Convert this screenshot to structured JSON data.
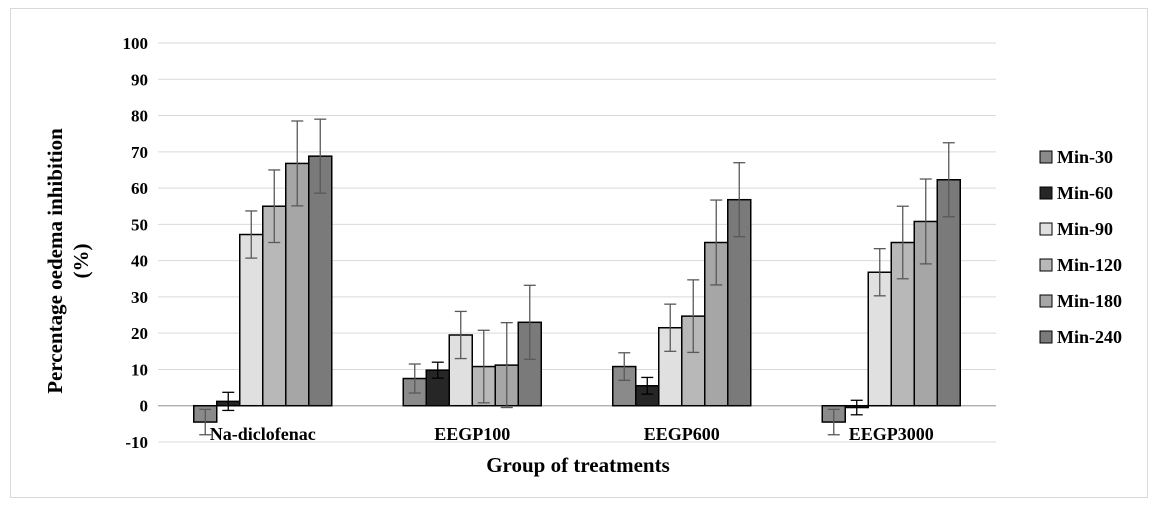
{
  "chart_data": {
    "type": "bar",
    "title": "",
    "xlabel": "Group of treatments",
    "ylabel_line1": "Percentage oedema inhibition",
    "ylabel_line2": "(%)",
    "ylim": [
      -10,
      100
    ],
    "yticks": [
      "-10",
      "0",
      "10",
      "20",
      "30",
      "40",
      "50",
      "60",
      "70",
      "80",
      "90",
      "100"
    ],
    "grid": true,
    "legend_position": "right",
    "categories": [
      "Na-diclofenac",
      "EEGP100",
      "EEGP600",
      "EEGP3000"
    ],
    "series": [
      {
        "name": "Min-30",
        "color": "#8a8a8a",
        "values": [
          -4.5,
          7.5,
          10.8,
          -4.5
        ],
        "errors": [
          3.5,
          4.0,
          3.8,
          3.5
        ]
      },
      {
        "name": "Min-60",
        "color": "#262626",
        "values": [
          1.2,
          9.8,
          5.5,
          -0.5
        ],
        "errors": [
          2.5,
          2.2,
          2.3,
          2.0
        ]
      },
      {
        "name": "Min-90",
        "color": "#e0e0e0",
        "values": [
          47.2,
          19.5,
          21.5,
          36.8
        ],
        "errors": [
          6.5,
          6.5,
          6.5,
          6.5
        ]
      },
      {
        "name": "Min-120",
        "color": "#b8b8b8",
        "values": [
          55.0,
          10.8,
          24.7,
          45.0
        ],
        "errors": [
          10.0,
          10.0,
          10.0,
          10.0
        ]
      },
      {
        "name": "Min-180",
        "color": "#a6a6a6",
        "values": [
          66.8,
          11.2,
          45.0,
          50.8
        ],
        "errors": [
          11.7,
          11.7,
          11.7,
          11.7
        ]
      },
      {
        "name": "Min-240",
        "color": "#7a7a7a",
        "values": [
          68.8,
          23.0,
          56.8,
          62.3
        ],
        "errors": [
          10.2,
          10.2,
          10.2,
          10.2
        ]
      }
    ]
  }
}
